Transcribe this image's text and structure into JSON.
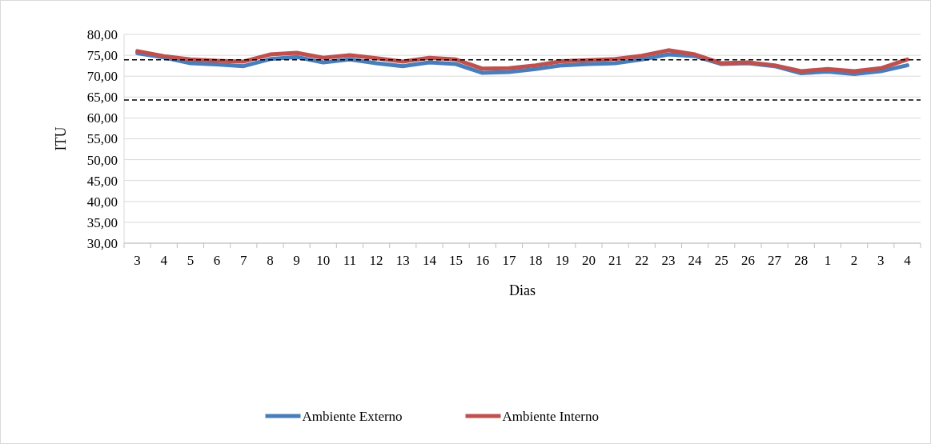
{
  "chart_data": {
    "type": "line",
    "xlabel": "Dias",
    "ylabel": "ITU",
    "categories": [
      "3",
      "4",
      "5",
      "6",
      "7",
      "8",
      "9",
      "10",
      "11",
      "12",
      "13",
      "14",
      "15",
      "16",
      "17",
      "18",
      "19",
      "20",
      "21",
      "22",
      "23",
      "24",
      "25",
      "26",
      "27",
      "28",
      "1",
      "2",
      "3",
      "4"
    ],
    "series": [
      {
        "name": "Ambiente Externo",
        "color": "#4a7ebb",
        "values": [
          75.5,
          74.5,
          73.1,
          72.8,
          72.4,
          74.1,
          74.6,
          73.3,
          74.0,
          73.1,
          72.4,
          73.3,
          72.9,
          70.8,
          71.0,
          71.7,
          72.6,
          72.9,
          73.1,
          74.0,
          75.2,
          74.8,
          72.9,
          73.1,
          72.4,
          70.7,
          71.1,
          70.5,
          71.2,
          72.6
        ]
      },
      {
        "name": "Ambiente Interno",
        "color": "#c0504d",
        "values": [
          76.0,
          74.8,
          74.0,
          73.7,
          73.5,
          75.2,
          75.6,
          74.4,
          75.0,
          74.3,
          73.5,
          74.4,
          74.0,
          71.8,
          71.9,
          72.6,
          73.6,
          73.8,
          74.1,
          74.9,
          76.2,
          75.2,
          73.1,
          73.3,
          72.6,
          71.2,
          71.7,
          71.2,
          71.9,
          74.0
        ]
      }
    ],
    "ylim": [
      30,
      80
    ],
    "yticks": [
      {
        "value": 30,
        "label": "30,00"
      },
      {
        "value": 35,
        "label": "35,00"
      },
      {
        "value": 40,
        "label": "40,00"
      },
      {
        "value": 45,
        "label": "45,00"
      },
      {
        "value": 50,
        "label": "50,00"
      },
      {
        "value": 55,
        "label": "55,00"
      },
      {
        "value": 60,
        "label": "60,00"
      },
      {
        "value": 65,
        "label": "65,00"
      },
      {
        "value": 70,
        "label": "70,00"
      },
      {
        "value": 75,
        "label": "75,00"
      },
      {
        "value": 80,
        "label": "80,00"
      }
    ],
    "ref_lines": [
      {
        "axis": "y",
        "value": 73.9,
        "color": "#000000",
        "line_style": "dashed"
      },
      {
        "axis": "y",
        "value": 64.3,
        "color": "#000000",
        "line_style": "dashed"
      }
    ],
    "grid": "y",
    "legend": "bottom",
    "marker": "none",
    "line_style": "solid"
  }
}
